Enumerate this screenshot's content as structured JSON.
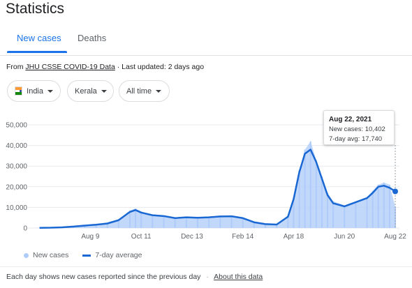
{
  "page": {
    "title": "Statistics"
  },
  "tabs": [
    {
      "label": "New cases",
      "active": true
    },
    {
      "label": "Deaths",
      "active": false
    }
  ],
  "source": {
    "prefix": "From",
    "link": "JHU CSSE COVID-19 Data",
    "separator": "·",
    "updated": "Last updated: 2 days ago"
  },
  "filters": {
    "country": {
      "label": "India",
      "icon": "india-flag-icon"
    },
    "region": {
      "label": "Kerala"
    },
    "range": {
      "label": "All time"
    }
  },
  "tooltip": {
    "date": "Aug 22, 2021",
    "new_cases": "New cases: 10,402",
    "avg": "7-day avg: 17,740"
  },
  "legend": {
    "cases": "New cases",
    "avg": "7-day average"
  },
  "footer": {
    "note": "Each day shows new cases reported since the previous day",
    "separator": "·",
    "link": "About this data"
  },
  "colors": {
    "bars": "#aecbfa",
    "line": "#1967d2",
    "accent": "#1a73e8"
  },
  "chart_data": {
    "type": "bar",
    "title": "",
    "xlabel": "",
    "ylabel": "",
    "x_tick_labels": [
      "Aug 9",
      "Oct 11",
      "Dec 13",
      "Feb 14",
      "Apr 18",
      "Jun 20",
      "Aug 22"
    ],
    "y_tick_labels": [
      "0",
      "10,000",
      "20,000",
      "30,000",
      "40,000",
      "50,000"
    ],
    "ylim": [
      0,
      50000
    ],
    "grid": true,
    "legend_position": "bottom-left",
    "series": [
      {
        "name": "New cases",
        "type": "bar",
        "dates": [
          "2020-06-07",
          "2020-06-21",
          "2020-07-05",
          "2020-07-19",
          "2020-08-02",
          "2020-08-16",
          "2020-08-30",
          "2020-09-13",
          "2020-09-27",
          "2020-10-04",
          "2020-10-11",
          "2020-10-25",
          "2020-11-08",
          "2020-11-22",
          "2020-12-06",
          "2020-12-20",
          "2021-01-03",
          "2021-01-17",
          "2021-01-31",
          "2021-02-14",
          "2021-02-28",
          "2021-03-14",
          "2021-03-28",
          "2021-04-11",
          "2021-04-18",
          "2021-04-25",
          "2021-05-02",
          "2021-05-09",
          "2021-05-16",
          "2021-05-23",
          "2021-05-30",
          "2021-06-06",
          "2021-06-20",
          "2021-07-04",
          "2021-07-18",
          "2021-07-25",
          "2021-08-01",
          "2021-08-08",
          "2021-08-15",
          "2021-08-22"
        ],
        "values": [
          100,
          150,
          400,
          800,
          1300,
          1700,
          2300,
          4000,
          8500,
          9500,
          8000,
          6500,
          6000,
          5000,
          5500,
          5000,
          5500,
          6000,
          6000,
          5000,
          3000,
          2000,
          1800,
          6000,
          15000,
          28000,
          38000,
          42000,
          33000,
          25000,
          17000,
          13000,
          11000,
          13000,
          15000,
          18000,
          21000,
          22000,
          21000,
          10402
        ]
      },
      {
        "name": "7-day average",
        "type": "line",
        "dates": [
          "2020-06-07",
          "2020-06-21",
          "2020-07-05",
          "2020-07-19",
          "2020-08-02",
          "2020-08-16",
          "2020-08-30",
          "2020-09-13",
          "2020-09-27",
          "2020-10-04",
          "2020-10-11",
          "2020-10-25",
          "2020-11-08",
          "2020-11-22",
          "2020-12-06",
          "2020-12-20",
          "2021-01-03",
          "2021-01-17",
          "2021-01-31",
          "2021-02-14",
          "2021-02-28",
          "2021-03-14",
          "2021-03-28",
          "2021-04-11",
          "2021-04-18",
          "2021-04-25",
          "2021-05-02",
          "2021-05-09",
          "2021-05-16",
          "2021-05-23",
          "2021-05-30",
          "2021-06-06",
          "2021-06-20",
          "2021-07-04",
          "2021-07-18",
          "2021-07-25",
          "2021-08-01",
          "2021-08-08",
          "2021-08-15",
          "2021-08-22"
        ],
        "values": [
          100,
          150,
          350,
          700,
          1200,
          1600,
          2200,
          3800,
          7800,
          8700,
          7500,
          6200,
          5800,
          4800,
          5200,
          5000,
          5200,
          5600,
          5700,
          4800,
          2800,
          1900,
          1700,
          5500,
          14000,
          27000,
          36000,
          38000,
          32000,
          24000,
          16000,
          12000,
          10500,
          12500,
          14500,
          17000,
          20000,
          20500,
          19500,
          17740
        ]
      }
    ]
  }
}
